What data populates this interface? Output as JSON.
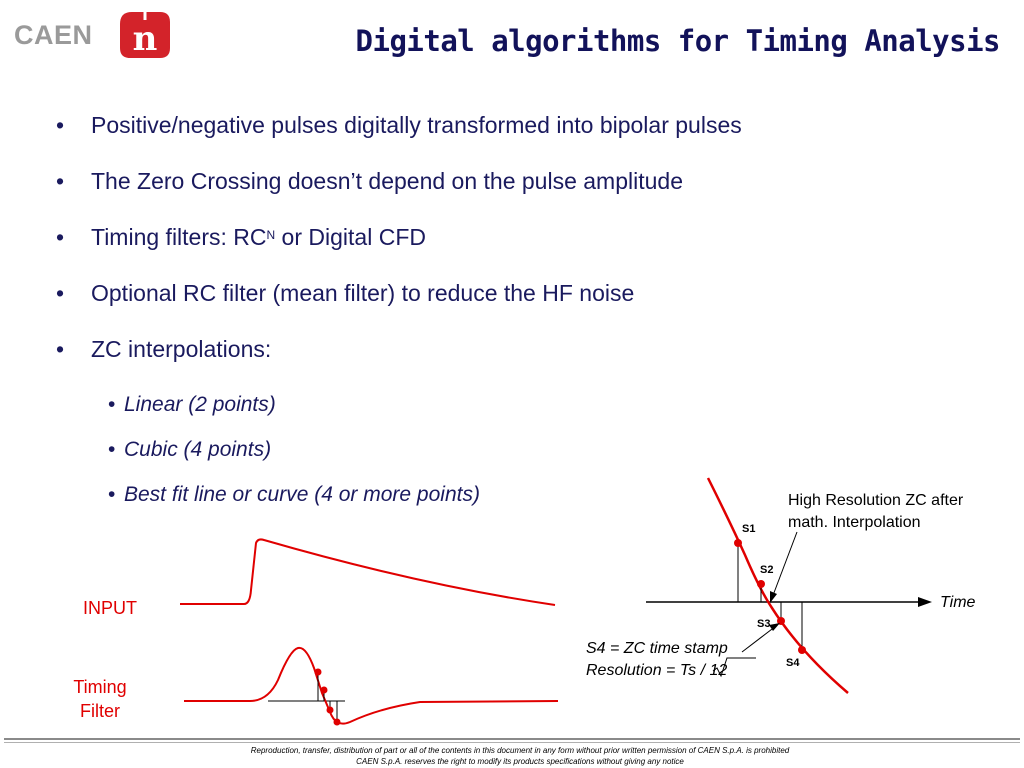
{
  "logo": {
    "text": "CAEN",
    "mark_letter": "n",
    "mark_color": "#d3232a",
    "text_color": "#9a9a9a"
  },
  "title": "Digital algorithms for Timing Analysis",
  "bullets": [
    {
      "text": "Positive/negative pulses digitally transformed into bipolar pulses"
    },
    {
      "text": "The Zero Crossing doesn’t depend on the pulse amplitude"
    },
    {
      "text": "Timing filters: RC",
      "sup": "N",
      "after": " or Digital CFD"
    },
    {
      "text": "Optional RC filter (mean filter) to reduce the HF noise"
    },
    {
      "text": "ZC interpolations:"
    }
  ],
  "sub_bullets": [
    "Linear (2 points)",
    "Cubic (4 points)",
    "Best fit line or curve (4 or more points)"
  ],
  "bullet_glyph": "•",
  "signals": {
    "input_label": "INPUT",
    "timing_label_line1": "Timing",
    "timing_label_line2": "Filter",
    "signal_color": "#e00000"
  },
  "zc_diagram": {
    "annotation_line1": "High Resolution ZC after",
    "annotation_line2": "math. Interpolation",
    "axis_label": "Time",
    "points": [
      "S1",
      "S2",
      "S3",
      "S4"
    ],
    "stamp_line1": "S4 = ZC time stamp",
    "stamp_line2_pre": "Resolution = Ts / ",
    "stamp_sqrt_value": "12"
  },
  "footer": {
    "line1": "Reproduction, transfer, distribution of part or all of the contents in this document in any form without prior written permission of  CAEN S.p.A. is prohibited",
    "line2": "CAEN S.p.A. reserves the right to modify its products specifications without giving any notice"
  }
}
